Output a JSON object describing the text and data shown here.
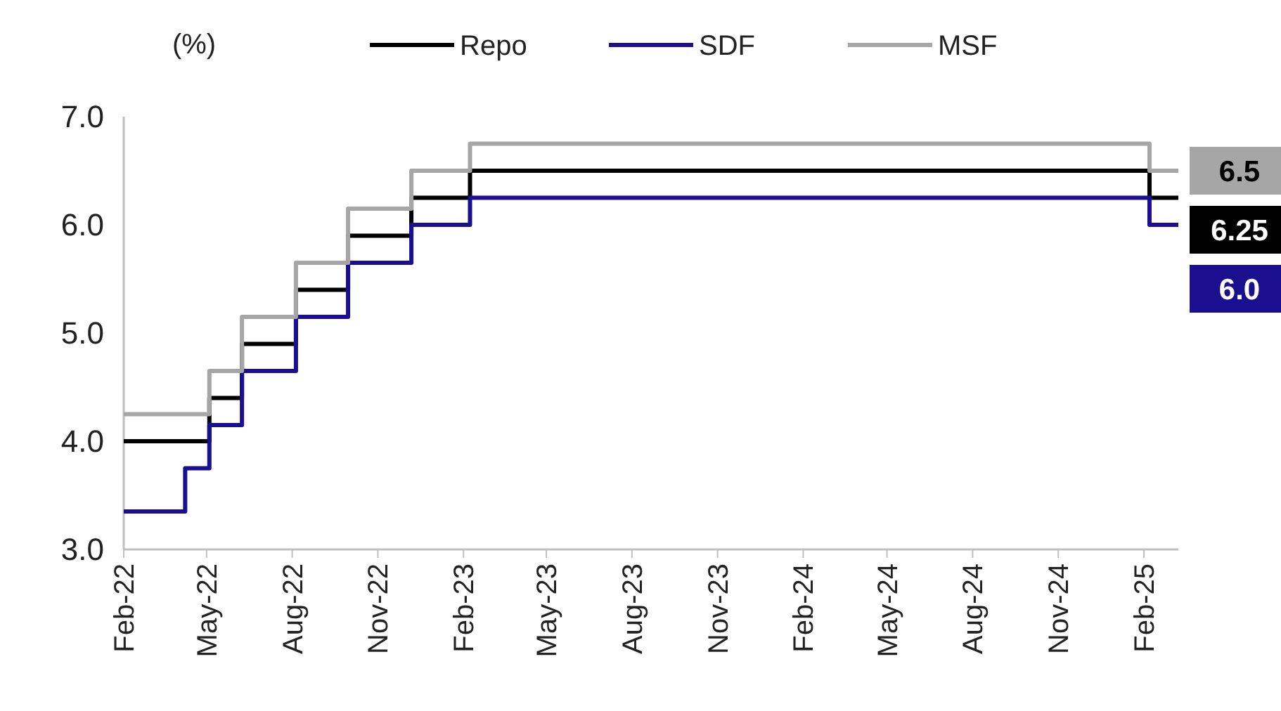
{
  "chart_data": {
    "type": "step",
    "ylabel": "(%)",
    "legend": "top",
    "xlim": [
      "2022-02-01",
      "2025-03-10"
    ],
    "ylim": [
      3,
      7
    ],
    "yticks": [
      {
        "value": 3,
        "label": "3.0"
      },
      {
        "value": 4,
        "label": "4.0"
      },
      {
        "value": 5,
        "label": "5.0"
      },
      {
        "value": 6,
        "label": "6.0"
      },
      {
        "value": 7,
        "label": "7.0"
      }
    ],
    "xticks": [
      {
        "value": "2022-02-01",
        "label": "Feb-22"
      },
      {
        "value": "2022-05-01",
        "label": "May-22"
      },
      {
        "value": "2022-08-01",
        "label": "Aug-22"
      },
      {
        "value": "2022-11-01",
        "label": "Nov-22"
      },
      {
        "value": "2023-02-01",
        "label": "Feb-23"
      },
      {
        "value": "2023-05-01",
        "label": "May-23"
      },
      {
        "value": "2023-08-01",
        "label": "Aug-23"
      },
      {
        "value": "2023-11-01",
        "label": "Nov-23"
      },
      {
        "value": "2024-02-01",
        "label": "Feb-24"
      },
      {
        "value": "2024-05-01",
        "label": "May-24"
      },
      {
        "value": "2024-08-01",
        "label": "Aug-24"
      },
      {
        "value": "2024-11-01",
        "label": "Nov-24"
      },
      {
        "value": "2025-02-01",
        "label": "Feb-25"
      }
    ],
    "series": [
      {
        "name": "Repo",
        "color": "#000000",
        "x": [
          "2022-02-01",
          "2022-05-04",
          "2022-06-08",
          "2022-08-05",
          "2022-09-30",
          "2022-12-07",
          "2023-02-08",
          "2025-02-07",
          "2025-03-10"
        ],
        "values": [
          4.0,
          4.4,
          4.9,
          5.4,
          5.9,
          6.25,
          6.5,
          6.25,
          6.25
        ]
      },
      {
        "name": "SDF",
        "color": "#1a0f8f",
        "x": [
          "2022-02-01",
          "2022-04-08",
          "2022-05-04",
          "2022-06-08",
          "2022-08-05",
          "2022-09-30",
          "2022-12-07",
          "2023-02-08",
          "2025-02-07",
          "2025-03-10"
        ],
        "values": [
          3.35,
          3.75,
          4.15,
          4.65,
          5.15,
          5.65,
          6.0,
          6.25,
          6.0,
          6.0
        ]
      },
      {
        "name": "MSF",
        "color": "#a6a6a6",
        "x": [
          "2022-02-01",
          "2022-05-04",
          "2022-06-08",
          "2022-08-05",
          "2022-09-30",
          "2022-12-07",
          "2023-02-08",
          "2025-02-07",
          "2025-03-10"
        ],
        "values": [
          4.25,
          4.65,
          5.15,
          5.65,
          6.15,
          6.5,
          6.75,
          6.5,
          6.5
        ]
      }
    ],
    "annotations": [
      {
        "text": "6.5",
        "x": "2025-03-10",
        "y": 6.5
      },
      {
        "text": "6.25",
        "x": "2025-03-10",
        "y": 6.25
      },
      {
        "text": "6.0",
        "x": "2025-03-10",
        "y": 6.0
      }
    ]
  }
}
